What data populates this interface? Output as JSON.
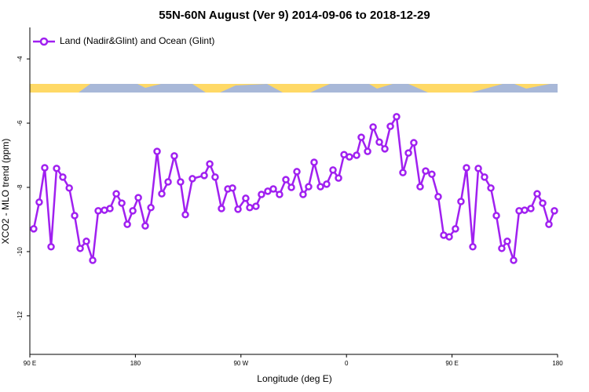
{
  "chart_data": {
    "type": "line",
    "title": "55N-60N August (Ver 9)   2014-09-06 to 2018-12-29",
    "xlabel": "Longitude (deg E)",
    "ylabel": "XCO2 - MLO trend (ppm)",
    "xlim": [
      90,
      540
    ],
    "ylim": [
      -13.2,
      -3.02
    ],
    "xticks": [
      {
        "value": 90,
        "label": "90 E"
      },
      180,
      {
        "value": 270,
        "label": "90 W"
      },
      {
        "value": 360,
        "label": "0"
      },
      {
        "value": 450,
        "label": "90 E"
      },
      {
        "value": 540,
        "label": "180"
      }
    ],
    "yticks": [
      -4,
      -6,
      -8,
      -10,
      -12
    ],
    "legend_position": "top-left",
    "series": [
      {
        "name": "Land (Nadir&Glint) and Ocean (Glint)",
        "color": "#a020f0",
        "x": [
          93.3,
          98.0,
          102.7,
          108.1,
          112.8,
          118.1,
          123.6,
          128.2,
          132.9,
          138.2,
          143.6,
          148.3,
          153.6,
          158.3,
          163.7,
          168.4,
          173.1,
          177.8,
          182.5,
          188.4,
          193.2,
          198.5,
          202.5,
          207.9,
          213.2,
          218.5,
          222.6,
          228.6,
          238.7,
          243.4,
          248.0,
          253.4,
          258.8,
          262.8,
          267.5,
          274.1,
          277.5,
          282.8,
          287.5,
          292.9,
          297.6,
          302.9,
          308.3,
          313.0,
          317.7,
          323.0,
          327.7,
          332.4,
          337.8,
          343.1,
          348.5,
          353.2,
          357.9,
          362.5,
          368.6,
          372.6,
          378.0,
          382.7,
          388.0,
          392.7,
          397.4,
          402.7,
          408.1,
          412.8,
          417.4,
          422.8,
          427.5,
          432.8,
          438.2,
          442.9,
          447.6,
          452.9,
          457.6,
          462.3,
          467.7,
          472.4,
          477.7,
          483.1,
          487.8,
          492.4,
          497.1,
          502.5,
          507.2,
          511.9,
          517.2,
          522.6,
          527.3,
          532.6,
          537.3
        ],
        "values": [
          -9.29,
          -8.46,
          -7.39,
          -9.85,
          -7.41,
          -7.68,
          -8.02,
          -8.88,
          -9.9,
          -9.68,
          -10.27,
          -8.73,
          -8.71,
          -8.66,
          -8.2,
          -8.49,
          -9.15,
          -8.73,
          -8.32,
          -9.2,
          -8.63,
          -6.88,
          -8.2,
          -7.83,
          -7.02,
          -7.83,
          -8.85,
          -7.73,
          -7.63,
          -7.27,
          -7.68,
          -8.66,
          -8.05,
          -8.02,
          -8.68,
          -8.34,
          -8.63,
          -8.59,
          -8.22,
          -8.12,
          -8.05,
          -8.22,
          -7.76,
          -8.0,
          -7.51,
          -8.22,
          -7.98,
          -7.22,
          -7.98,
          -7.9,
          -7.46,
          -7.71,
          -6.98,
          -7.05,
          -7.0,
          -6.44,
          -6.88,
          -6.12,
          -6.59,
          -6.8,
          -6.1,
          -5.8,
          -7.54,
          -6.93,
          -6.61,
          -7.98,
          -7.49,
          -7.59,
          -8.29,
          -9.49,
          -9.54,
          -9.29,
          -8.44,
          -7.39,
          -9.85,
          -7.41,
          -7.68,
          -8.02,
          -8.88,
          -9.9,
          -9.68,
          -10.27,
          -8.73,
          -8.71,
          -8.66,
          -8.2,
          -8.49,
          -9.15,
          -8.73
        ]
      }
    ]
  }
}
